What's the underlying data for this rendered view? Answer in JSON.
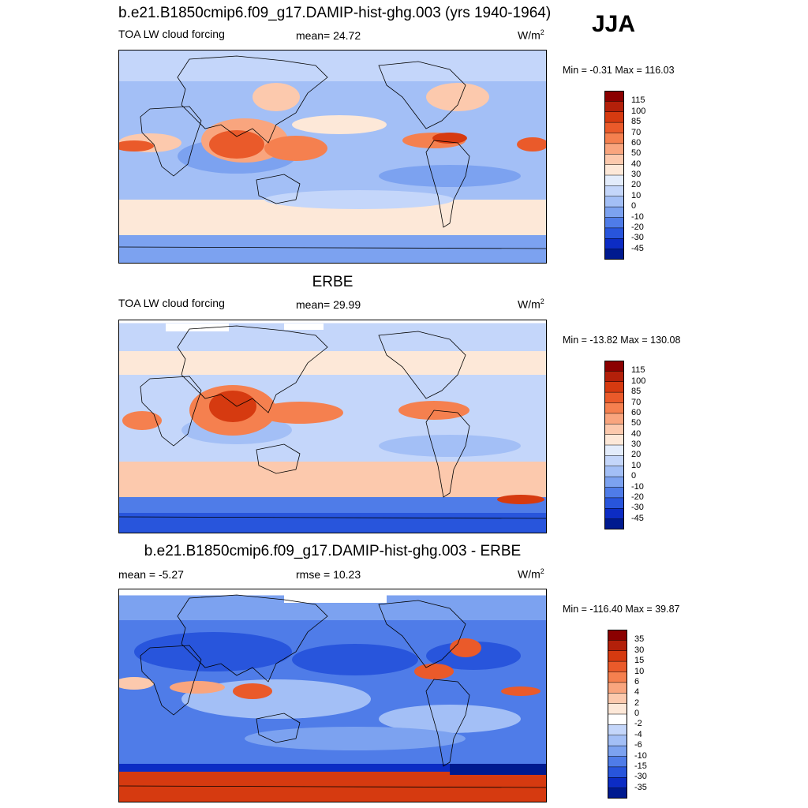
{
  "season": "JJA",
  "panels": [
    {
      "title": "b.e21.B1850cmip6.f09_g17.DAMIP-hist-ghg.003 (yrs 1940-1964)",
      "left_label": "TOA LW cloud forcing",
      "center_label": "mean=  24.72",
      "units": "W/m",
      "units_sup": "2",
      "minmax": "Min =  -0.31 Max = 116.03",
      "colorbar": {
        "labels": [
          "115",
          "100",
          "85",
          "70",
          "60",
          "50",
          "40",
          "30",
          "20",
          "10",
          "0",
          "-10",
          "-20",
          "-30",
          "-45"
        ],
        "colors": [
          "#8b0000",
          "#b3200a",
          "#d63a10",
          "#ea5a2a",
          "#f5804f",
          "#f9a57e",
          "#fcc9ad",
          "#fde8d8",
          "#e3ecfb",
          "#c4d6fa",
          "#a3bff6",
          "#7ca2f0",
          "#4f7ce8",
          "#2855dc",
          "#0c2cc4",
          "#001a8f"
        ]
      }
    },
    {
      "title": "ERBE",
      "left_label": "TOA LW cloud forcing",
      "center_label": "mean=  29.99",
      "units": "W/m",
      "units_sup": "2",
      "minmax": "Min = -13.82 Max = 130.08",
      "colorbar": {
        "labels": [
          "115",
          "100",
          "85",
          "70",
          "60",
          "50",
          "40",
          "30",
          "20",
          "10",
          "0",
          "-10",
          "-20",
          "-30",
          "-45"
        ],
        "colors": [
          "#8b0000",
          "#b3200a",
          "#d63a10",
          "#ea5a2a",
          "#f5804f",
          "#f9a57e",
          "#fcc9ad",
          "#fde8d8",
          "#e3ecfb",
          "#c4d6fa",
          "#a3bff6",
          "#7ca2f0",
          "#4f7ce8",
          "#2855dc",
          "#0c2cc4",
          "#001a8f"
        ]
      }
    },
    {
      "title": "b.e21.B1850cmip6.f09_g17.DAMIP-hist-ghg.003 - ERBE",
      "left_label": "mean =  -5.27",
      "center_label": "rmse =  10.23",
      "units": "W/m",
      "units_sup": "2",
      "minmax": "Min = -116.40 Max =  39.87",
      "colorbar": {
        "labels": [
          "35",
          "30",
          "15",
          "10",
          "6",
          "4",
          "2",
          "0",
          "-2",
          "-4",
          "-6",
          "-10",
          "-15",
          "-30",
          "-35"
        ],
        "colors": [
          "#8b0000",
          "#b3200a",
          "#d63a10",
          "#ea5a2a",
          "#f5804f",
          "#f9a57e",
          "#fcc9ad",
          "#fde8d8",
          "#ffffff",
          "#c4d6fa",
          "#a3bff6",
          "#7ca2f0",
          "#4f7ce8",
          "#2855dc",
          "#0c2cc4",
          "#001a8f"
        ]
      }
    }
  ]
}
